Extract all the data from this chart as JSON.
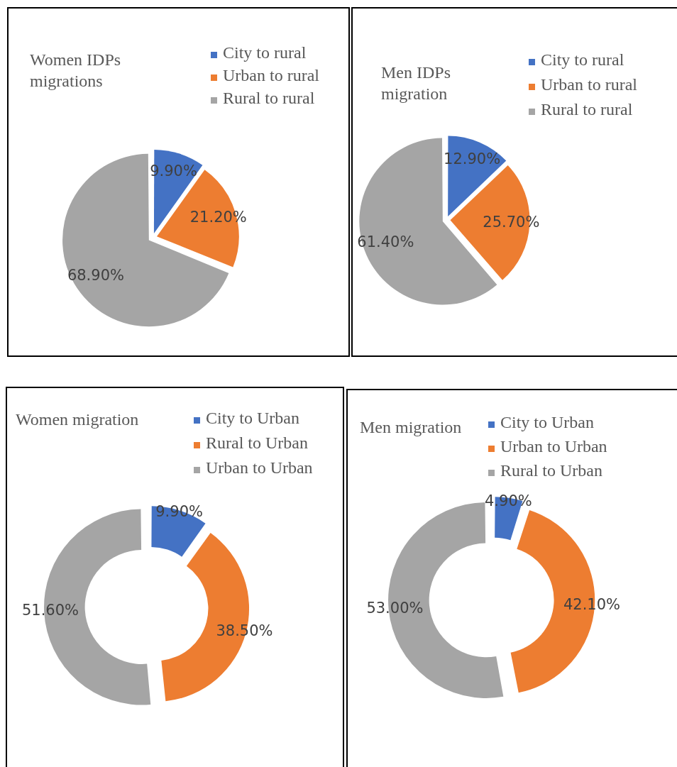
{
  "chart_data": [
    {
      "type": "pie",
      "title": "Women IDPs migrations",
      "categories": [
        "City to rural",
        "Urban to rural",
        "Rural to rural"
      ],
      "values": [
        9.9,
        21.2,
        68.9
      ],
      "colors": [
        "#4472c4",
        "#ed7d31",
        "#a5a5a5"
      ],
      "legend": "top right",
      "value_labels": [
        "9.90%",
        "21.20%",
        "68.90%"
      ]
    },
    {
      "type": "pie",
      "title": "Men IDPs migration",
      "categories": [
        "City to rural",
        "Urban to rural",
        "Rural to rural"
      ],
      "values": [
        12.9,
        25.7,
        61.4
      ],
      "colors": [
        "#4472c4",
        "#ed7d31",
        "#a5a5a5"
      ],
      "legend": "top right",
      "value_labels": [
        "12.90%",
        "25.70%",
        "61.40%"
      ]
    },
    {
      "type": "donut",
      "title": "Women migration",
      "categories": [
        "City to Urban",
        "Rural to Urban",
        "Urban to Urban"
      ],
      "values": [
        9.9,
        38.5,
        51.6
      ],
      "colors": [
        "#4472c4",
        "#ed7d31",
        "#a5a5a5"
      ],
      "legend": "top right",
      "value_labels": [
        "9.90%",
        "38.50%",
        "51.60%"
      ]
    },
    {
      "type": "donut",
      "title": "Men migration",
      "categories": [
        "City to Urban",
        "Urban to Urban",
        "Rural to Urban"
      ],
      "values": [
        4.9,
        42.1,
        53.0
      ],
      "colors": [
        "#4472c4",
        "#ed7d31",
        "#a5a5a5"
      ],
      "legend": "top right",
      "value_labels": [
        "4.90%",
        "42.10%",
        "53.00%"
      ]
    }
  ]
}
